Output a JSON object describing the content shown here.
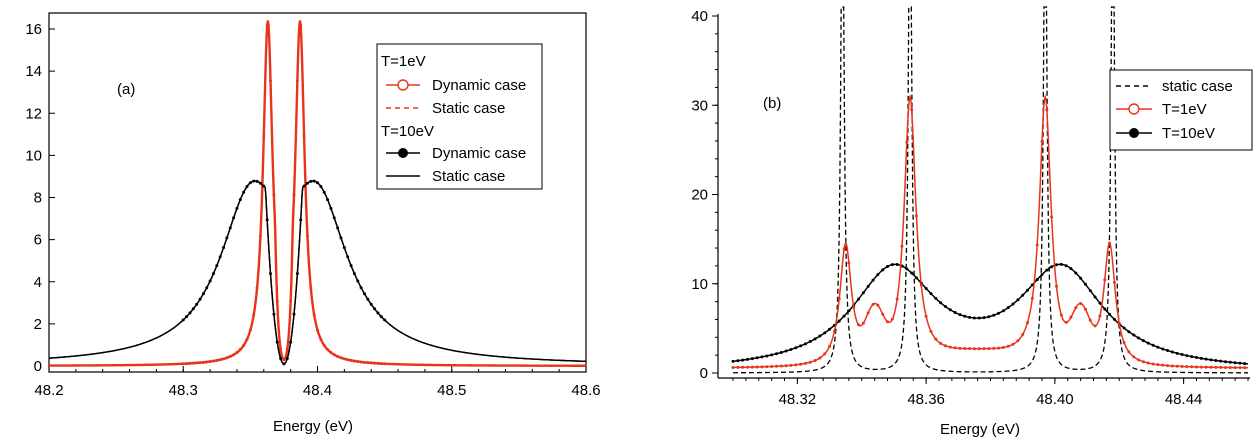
{
  "chart_data": [
    {
      "type": "line",
      "panel_label": "(a)",
      "xlabel": "Energy (eV)",
      "ylabel": "",
      "xlim": [
        48.2,
        48.6
      ],
      "ylim": [
        0,
        16.5
      ],
      "xticks": [
        "48.2",
        "48.3",
        "48.4",
        "48.5",
        "48.6"
      ],
      "yticks": [
        "0",
        "2",
        "4",
        "6",
        "8",
        "10",
        "12",
        "14",
        "16"
      ],
      "legend": {
        "position": "top-right",
        "entries": [
          {
            "text": "T=1eV",
            "kind": "header"
          },
          {
            "text": "Dynamic case",
            "kind": "line-circle",
            "color": "#e8341c"
          },
          {
            "text": "Static case",
            "kind": "dashed",
            "color": "#e8341c"
          },
          {
            "text": "T=10eV",
            "kind": "header"
          },
          {
            "text": "Dynamic case",
            "kind": "line-dot",
            "color": "#000000"
          },
          {
            "text": "Static case",
            "kind": "solid",
            "color": "#000000"
          }
        ]
      },
      "series": [
        {
          "group": "T=1eV",
          "label": "Dynamic case",
          "style": "line-markers",
          "color": "#e8341c",
          "center": 48.375,
          "split": 0.012,
          "gamma": 0.0042,
          "height": 16.4,
          "center_floor": 0.3
        },
        {
          "group": "T=1eV",
          "label": "Static case",
          "style": "dashed",
          "color": "#e8341c",
          "center": 48.375,
          "split": 0.012,
          "gamma": 0.0042,
          "height": 16.4,
          "center_floor": 0.3
        },
        {
          "group": "T=10eV",
          "label": "Dynamic case",
          "style": "line-dots",
          "color": "#000000",
          "center": 48.375,
          "split": 0.025,
          "gamma": 0.028,
          "height": 8.7,
          "center_floor": 0.1
        },
        {
          "group": "T=10eV",
          "label": "Static case",
          "style": "solid",
          "color": "#000000",
          "center": 48.375,
          "split": 0.025,
          "gamma": 0.028,
          "height": 8.7,
          "center_floor": 0.1
        }
      ]
    },
    {
      "type": "line",
      "panel_label": "(b)",
      "xlabel": "Energy (eV)",
      "ylabel": "",
      "xlim": [
        48.3,
        48.46
      ],
      "ylim": [
        0,
        40
      ],
      "xticks": [
        "48.32",
        "48.36",
        "48.40",
        "48.44"
      ],
      "yticks": [
        "0",
        "10",
        "20",
        "30",
        "40"
      ],
      "legend": {
        "position": "top-right",
        "entries": [
          {
            "text": "static case",
            "kind": "dashed",
            "color": "#000000"
          },
          {
            "text": "T=1eV",
            "kind": "line-circle",
            "color": "#e8341c"
          },
          {
            "text": "T=10eV",
            "kind": "line-dot",
            "color": "#000000"
          }
        ]
      },
      "series": [
        {
          "label": "static case",
          "style": "dashed",
          "color": "#000000",
          "peaks": [
            48.334,
            48.355,
            48.397,
            48.418
          ],
          "gamma": 0.0006,
          "height": 40
        },
        {
          "label": "T=1eV",
          "style": "line-markers",
          "color": "#e8341c",
          "peaks": [
            48.335,
            48.355,
            48.397,
            48.417
          ],
          "peak_values": [
            13.6,
            29.7,
            29.7,
            13.6
          ],
          "gamma": 0.0022,
          "dip_values": {
            "between_outer_inner": 8.0,
            "center": 2.5
          }
        },
        {
          "label": "T=10eV",
          "style": "line-dots",
          "color": "#000000",
          "peaks": [
            48.35,
            48.402
          ],
          "peak_values": [
            14.4,
            14.4
          ],
          "center_value": 6.2
        }
      ]
    }
  ]
}
